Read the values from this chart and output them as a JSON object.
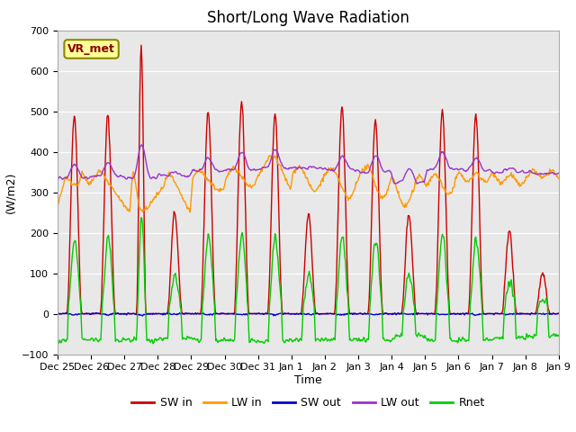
{
  "title": "Short/Long Wave Radiation",
  "xlabel": "Time",
  "ylabel": "(W/m2)",
  "ylim": [
    -100,
    700
  ],
  "yticks": [
    -100,
    0,
    100,
    200,
    300,
    400,
    500,
    600,
    700
  ],
  "xtick_labels": [
    "Dec 25",
    "Dec 26",
    "Dec 27",
    "Dec 28",
    "Dec 29",
    "Dec 30",
    "Dec 31",
    "Jan 1",
    "Jan 2",
    "Jan 3",
    "Jan 4",
    "Jan 5",
    "Jan 6",
    "Jan 7",
    "Jan 8",
    "Jan 9"
  ],
  "colors": {
    "SW_in": "#cc0000",
    "LW_in": "#ff9900",
    "SW_out": "#0000cc",
    "LW_out": "#9933cc",
    "Rnet": "#00cc00"
  },
  "legend_labels": [
    "SW in",
    "LW in",
    "SW out",
    "LW out",
    "Rnet"
  ],
  "legend_colors": [
    "#cc0000",
    "#ff9900",
    "#0000cc",
    "#9933cc",
    "#00cc00"
  ],
  "annotation_text": "VR_met",
  "bg_color": "#e8e8e8",
  "title_fontsize": 12,
  "axis_fontsize": 9,
  "tick_fontsize": 9
}
